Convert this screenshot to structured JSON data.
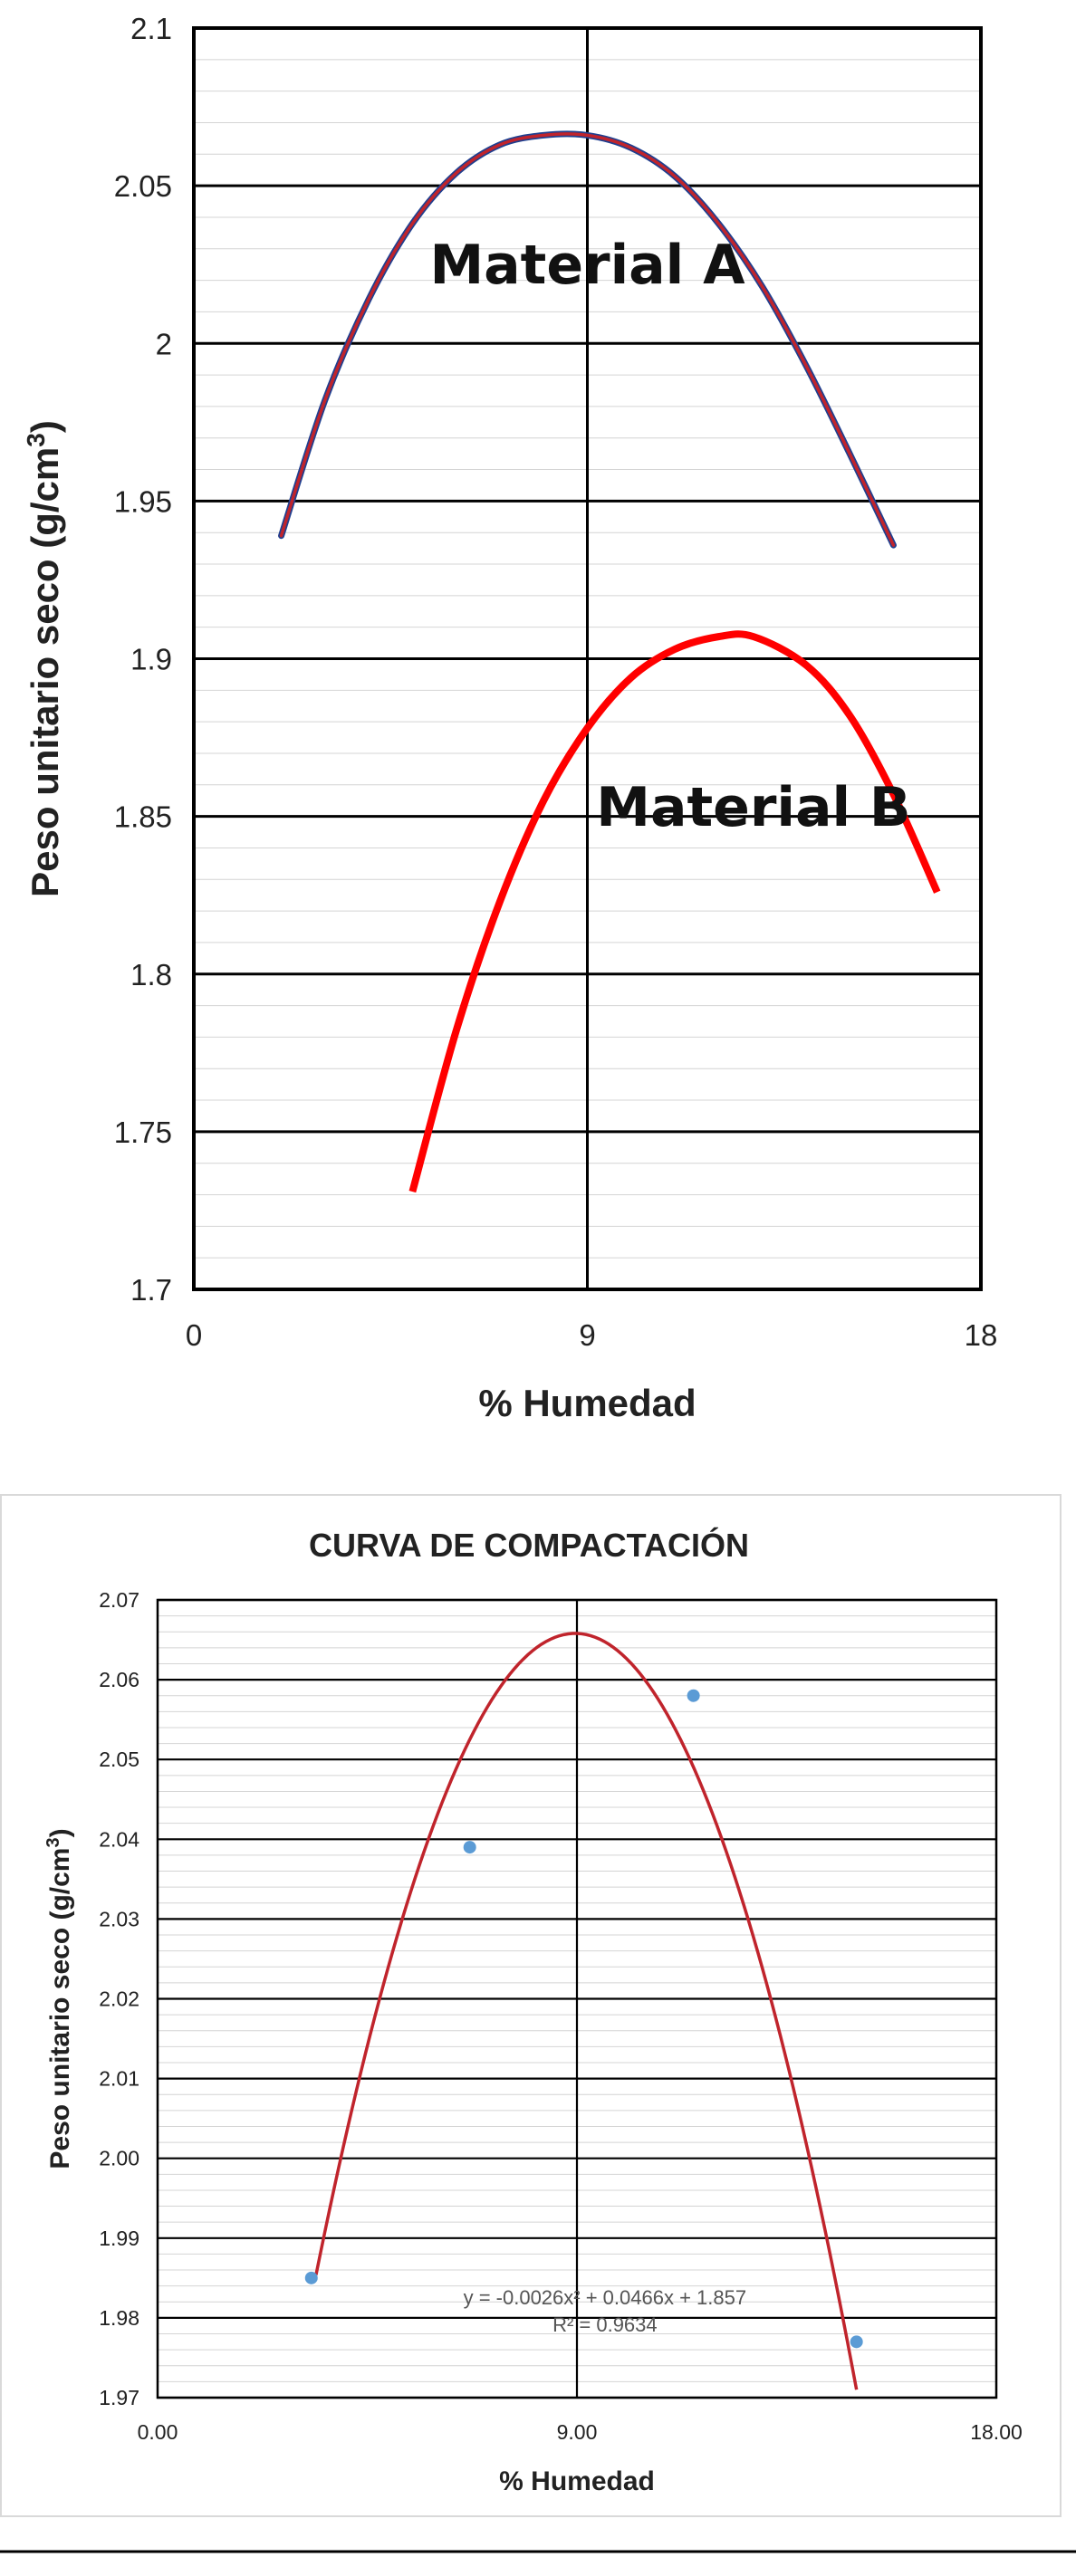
{
  "chart_data": [
    {
      "type": "line",
      "title": "",
      "xlabel": "% Humedad",
      "ylabel": "Peso unitario seco (g/cm",
      "ylabel_sup": "3",
      "ylabel_close": ")",
      "xlim": [
        0,
        18
      ],
      "ylim": [
        1.7,
        2.1
      ],
      "x_ticks": [
        0,
        9,
        18
      ],
      "x_tick_labels": [
        "0",
        "9",
        "18"
      ],
      "y_ticks": [
        1.7,
        1.75,
        1.8,
        1.85,
        1.9,
        1.95,
        2.0,
        2.05,
        2.1
      ],
      "y_tick_labels": [
        "1.7",
        "1.75",
        "1.8",
        "1.85",
        "1.9",
        "1.95",
        "2",
        "2.05",
        "2.1"
      ],
      "grid": true,
      "series": [
        {
          "name": "Material A",
          "color": "#c0242c",
          "outline_color": "#1f3f8f",
          "x": [
            2.0,
            3.0,
            4.0,
            5.0,
            6.0,
            7.0,
            8.0,
            9.0,
            10.0,
            11.0,
            12.0,
            13.0,
            14.0,
            15.0,
            16.0
          ],
          "y": [
            1.939,
            1.982,
            2.014,
            2.038,
            2.054,
            2.063,
            2.066,
            2.066,
            2.062,
            2.053,
            2.038,
            2.018,
            1.993,
            1.965,
            1.936
          ]
        },
        {
          "name": "Material B",
          "color": "#ff0000",
          "x": [
            5.0,
            6.0,
            7.0,
            8.0,
            9.0,
            10.0,
            11.0,
            12.0,
            12.8,
            14.0,
            15.0,
            16.0,
            17.0
          ],
          "y": [
            1.731,
            1.782,
            1.823,
            1.855,
            1.878,
            1.894,
            1.903,
            1.907,
            1.907,
            1.898,
            1.882,
            1.857,
            1.826
          ]
        }
      ],
      "annotations": [
        {
          "text": "Material A",
          "x": 9.0,
          "y": 2.019
        },
        {
          "text": "Material B",
          "x": 12.8,
          "y": 1.847
        }
      ]
    },
    {
      "type": "scatter",
      "title": "CURVA DE COMPACTACIÓN",
      "xlabel": "% Humedad",
      "ylabel": "Peso unitario seco (g/cm",
      "ylabel_sup": "3",
      "ylabel_close": ")",
      "xlim": [
        0,
        18
      ],
      "ylim": [
        1.97,
        2.07
      ],
      "x_ticks": [
        0,
        9,
        18
      ],
      "x_tick_labels": [
        "0.00",
        "9.00",
        "18.00"
      ],
      "y_ticks": [
        1.97,
        1.98,
        1.99,
        2.0,
        2.01,
        2.02,
        2.03,
        2.04,
        2.05,
        2.06,
        2.07
      ],
      "y_tick_labels": [
        "1.97",
        "1.98",
        "1.99",
        "2.00",
        "2.01",
        "2.02",
        "2.03",
        "2.04",
        "2.05",
        "2.06",
        "2.07"
      ],
      "grid": true,
      "points": {
        "color": "#5b9bd5",
        "x": [
          3.3,
          6.7,
          11.5,
          15.0
        ],
        "y": [
          1.985,
          2.039,
          2.058,
          1.977
        ]
      },
      "trendline": {
        "type": "polynomial-2",
        "color": "#c0242c",
        "a": -0.0026,
        "b": 0.0466,
        "c": 1.857,
        "x_range": [
          3.4,
          15.0
        ]
      },
      "equation_text": "y = -0.0026x² + 0.0466x + 1.857",
      "r2_text": "R² = 0.9634",
      "equation_position": {
        "x": 9.6,
        "y": 1.981
      }
    }
  ]
}
